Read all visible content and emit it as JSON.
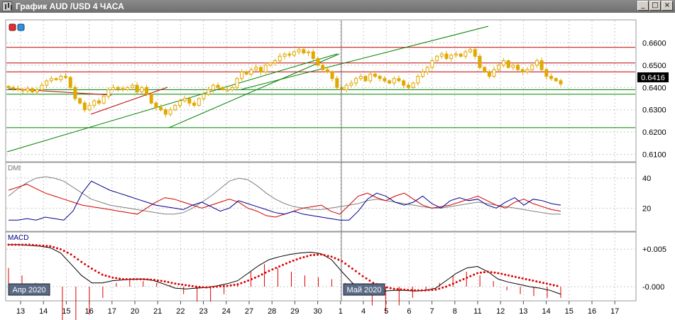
{
  "window": {
    "title": "График AUD /USD  4 ЧАСА",
    "buttons": {
      "minimize": "_",
      "maximize": "□",
      "close": "×"
    }
  },
  "price_panel": {
    "current_price": "0.6416",
    "y_ticks": [
      "0.6600",
      "0.6500",
      "0.6400",
      "0.6300",
      "0.6200",
      "0.6100"
    ]
  },
  "dmi_panel": {
    "label": "DMI",
    "y_ticks": [
      "40",
      "20"
    ]
  },
  "macd_panel": {
    "label": "MACD",
    "y_ticks": [
      "+0.005",
      "-0.000"
    ]
  },
  "x_axis": {
    "ticks": [
      "13",
      "14",
      "15",
      "16",
      "17",
      "20",
      "21",
      "22",
      "23",
      "24",
      "27",
      "28",
      "29",
      "30",
      "1",
      "4",
      "5",
      "6",
      "7",
      "8",
      "11",
      "12",
      "13",
      "14",
      "15",
      "16",
      "17"
    ],
    "period_labels": [
      "Апр 2020",
      "Май 2020"
    ]
  },
  "colors": {
    "candle": "#e0a800",
    "resistance": "#c00000",
    "support": "#008000",
    "plus_di": "#00008b",
    "minus_di": "#d00000",
    "adx": "#808080",
    "macd": "#000000",
    "signal": "#e00000",
    "price_tag": "#000000"
  },
  "chart_data": {
    "type": "candlestick",
    "symbol": "AUD/USD",
    "timeframe": "H4",
    "ylim": [
      0.607,
      0.67
    ],
    "close_series": [
      0.64,
      0.6395,
      0.639,
      0.6385,
      0.6395,
      0.638,
      0.639,
      0.641,
      0.643,
      0.644,
      0.6435,
      0.645,
      0.6445,
      0.64,
      0.635,
      0.633,
      0.63,
      0.632,
      0.634,
      0.633,
      0.636,
      0.639,
      0.64,
      0.6395,
      0.639,
      0.64,
      0.641,
      0.638,
      0.64,
      0.637,
      0.633,
      0.631,
      0.63,
      0.628,
      0.63,
      0.632,
      0.634,
      0.635,
      0.633,
      0.632,
      0.635,
      0.637,
      0.639,
      0.641,
      0.64,
      0.639,
      0.639,
      0.64,
      0.644,
      0.647,
      0.646,
      0.648,
      0.649,
      0.647,
      0.65,
      0.651,
      0.652,
      0.654,
      0.655,
      0.6545,
      0.656,
      0.657,
      0.6555,
      0.656,
      0.653,
      0.65,
      0.648,
      0.647,
      0.644,
      0.64,
      0.639,
      0.641,
      0.642,
      0.644,
      0.645,
      0.643,
      0.646,
      0.645,
      0.644,
      0.643,
      0.642,
      0.644,
      0.643,
      0.641,
      0.64,
      0.642,
      0.645,
      0.647,
      0.649,
      0.652,
      0.654,
      0.655,
      0.653,
      0.6545,
      0.655,
      0.654,
      0.656,
      0.657,
      0.654,
      0.649,
      0.647,
      0.645,
      0.648,
      0.65,
      0.652,
      0.649,
      0.65,
      0.648,
      0.647,
      0.648,
      0.65,
      0.652,
      0.648,
      0.645,
      0.644,
      0.643,
      0.6416
    ],
    "horizontal_levels": [
      {
        "value": 0.658,
        "color": "#c00000"
      },
      {
        "value": 0.651,
        "color": "#c00000"
      },
      {
        "value": 0.647,
        "color": "#c00000"
      },
      {
        "value": 0.639,
        "color": "#008000"
      },
      {
        "value": 0.637,
        "color": "#008000"
      },
      {
        "value": 0.622,
        "color": "#008000"
      }
    ],
    "dmi": {
      "plus_di": [
        12,
        12,
        13,
        12,
        14,
        13,
        12,
        18,
        30,
        38,
        35,
        32,
        30,
        28,
        26,
        24,
        22,
        21,
        20,
        19,
        22,
        24,
        21,
        18,
        20,
        25,
        23,
        21,
        19,
        17,
        16,
        18,
        16,
        15,
        14,
        13,
        12,
        12,
        18,
        26,
        30,
        28,
        24,
        22,
        24,
        28,
        23,
        20,
        25,
        27,
        25,
        26,
        22,
        20,
        24,
        27,
        22,
        26,
        25,
        23,
        22
      ],
      "minus_di": [
        32,
        34,
        36,
        33,
        30,
        28,
        26,
        24,
        22,
        21,
        20,
        19,
        18,
        17,
        16,
        20,
        24,
        27,
        26,
        24,
        22,
        20,
        22,
        24,
        26,
        24,
        20,
        18,
        15,
        14,
        16,
        18,
        20,
        21,
        22,
        18,
        16,
        22,
        28,
        30,
        27,
        25,
        28,
        30,
        26,
        22,
        20,
        21,
        22,
        24,
        26,
        28,
        25,
        22,
        20,
        24,
        26,
        23,
        21,
        19,
        18
      ],
      "adx": [
        28,
        33,
        37,
        40,
        41,
        40,
        38,
        34,
        30,
        26,
        24,
        22,
        21,
        20,
        19,
        18,
        17,
        16,
        16,
        17,
        20,
        24,
        28,
        33,
        38,
        40,
        39,
        35,
        30,
        26,
        23,
        21,
        20,
        19,
        19,
        20,
        21,
        22,
        23,
        25,
        26,
        25,
        24,
        23,
        22,
        21,
        20,
        20,
        21,
        22,
        23,
        24,
        23,
        22,
        21,
        20,
        19,
        18,
        17,
        16,
        16
      ]
    },
    "macd": {
      "main": [
        0.0056,
        0.0056,
        0.0055,
        0.0054,
        0.0052,
        0.0045,
        0.003,
        0.0015,
        0.0005,
        0.0005,
        0.0008,
        0.0009,
        0.001,
        0.001,
        0.0008,
        0.0003,
        -0.0002,
        -0.0003,
        -0.0002,
        -0.0001,
        0.0001,
        0.0004,
        0.0008,
        0.0018,
        0.0028,
        0.0036,
        0.004,
        0.0043,
        0.0045,
        0.0046,
        0.0044,
        0.0036,
        0.002,
        0.0005,
        -0.0004,
        -0.0006,
        -0.0006,
        -0.0005,
        -0.0005,
        -0.0006,
        -0.0005,
        -0.0002,
        0.0008,
        0.0018,
        0.0025,
        0.0027,
        0.002,
        0.001,
        0.0006,
        0.0003,
        0.0,
        -0.0002,
        -0.0005,
        -0.001
      ],
      "signal": [
        0.0056,
        0.0056,
        0.0056,
        0.0055,
        0.0054,
        0.005,
        0.0043,
        0.0033,
        0.0024,
        0.0016,
        0.0012,
        0.001,
        0.001,
        0.001,
        0.0009,
        0.0007,
        0.0004,
        0.0002,
        0.0,
        -0.0001,
        0.0,
        0.0001,
        0.0003,
        0.0008,
        0.0014,
        0.0021,
        0.0027,
        0.0033,
        0.0038,
        0.0042,
        0.0043,
        0.004,
        0.0034,
        0.0024,
        0.0014,
        0.0005,
        0.0,
        -0.0003,
        -0.0004,
        -0.0005,
        -0.0005,
        -0.0004,
        0.0,
        0.0006,
        0.0012,
        0.0018,
        0.002,
        0.0018,
        0.0015,
        0.0012,
        0.0009,
        0.0006,
        0.0003,
        0.0
      ],
      "histogram": [
        0.001,
        0.0006,
        0.0002,
        -0.0005,
        -0.0018,
        -0.002,
        -0.0015,
        -0.0006,
        0.0002,
        0.0004,
        0.0003,
        0.0002,
        0.0001,
        -0.0004,
        -0.0008,
        -0.0008,
        -0.0004,
        0.0002,
        0.0008,
        0.0012,
        0.001,
        0.0008,
        0.0006,
        0.0005,
        0.0004,
        0.0002,
        -0.0004,
        -0.001,
        -0.0014,
        -0.001,
        -0.0006,
        -0.0002,
        0.0002,
        0.0006,
        0.0008,
        0.0006,
        0.0003,
        -0.0002,
        -0.0004,
        -0.0005,
        -0.0006,
        -0.0006
      ]
    }
  }
}
